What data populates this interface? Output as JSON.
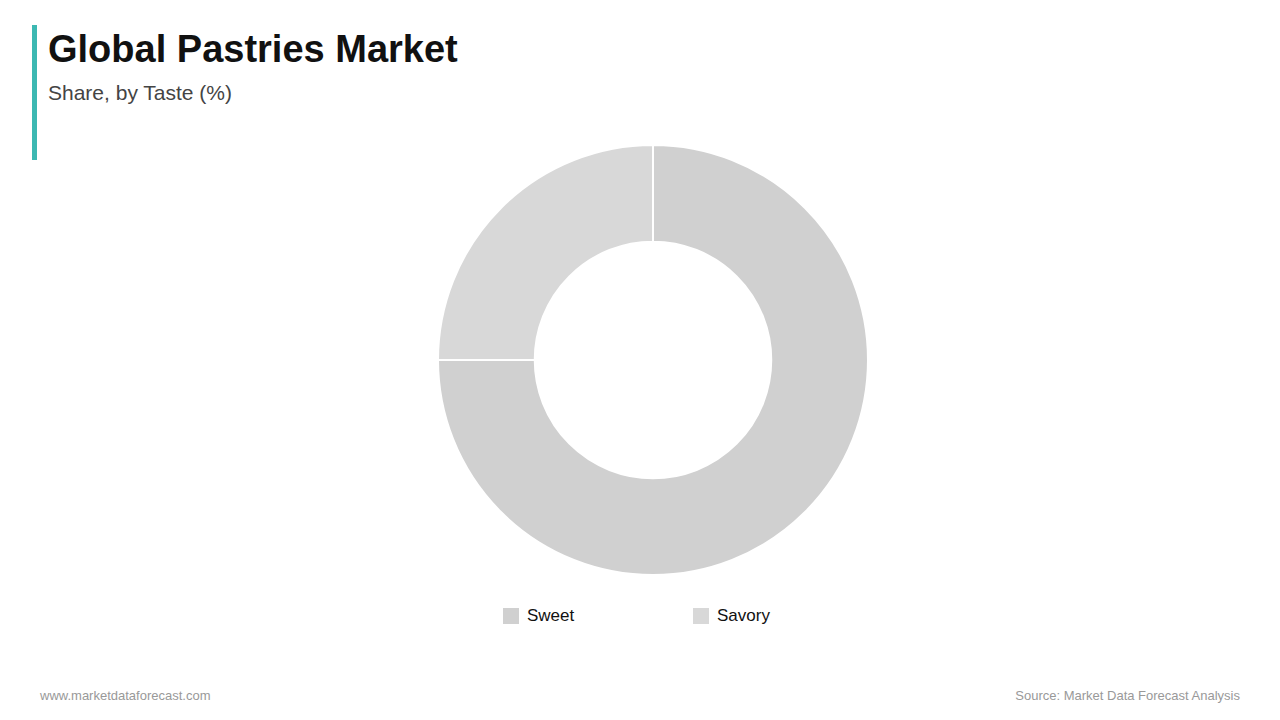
{
  "chart_data": {
    "type": "pie",
    "title": "Global Pastries Market",
    "subtitle": "Share, by Taste (%)",
    "categories": [
      "Sweet",
      "Savory"
    ],
    "values": [
      75,
      25
    ],
    "colors": [
      "#d0d0d0",
      "#d8d8d8"
    ],
    "legend": "bottom",
    "annotations": [
      "www.marketdataforecast.com",
      "Source: Market Data Forecast Analysis"
    ]
  }
}
